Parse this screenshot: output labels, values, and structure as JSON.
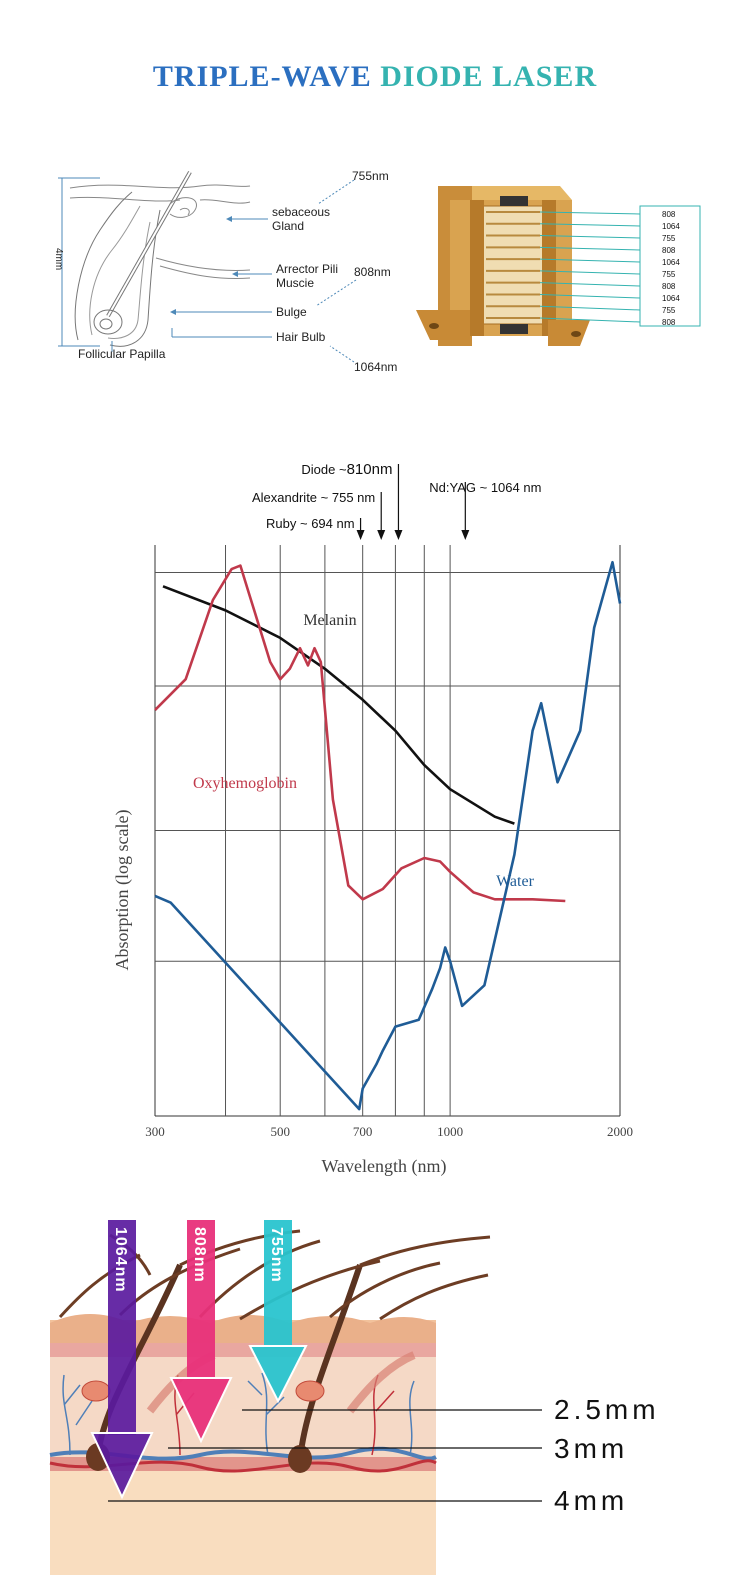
{
  "title": {
    "part1": "TRIPLE-WAVE",
    "part2": "DIODE LASER"
  },
  "anatomy": {
    "depth_label": "4mm",
    "labels": {
      "nm755": "755nm",
      "sebaceous": "sebaceous",
      "gland": "Gland",
      "nm808": "808nm",
      "arrector1": "Arrector Pili",
      "arrector2": "Muscie",
      "bulge": "Bulge",
      "hair_bulb": "Hair Bulb",
      "nm1064": "1064nm",
      "papilla": "Follicular Papilla"
    }
  },
  "module": {
    "bars": [
      "808",
      "1064",
      "755",
      "808",
      "1064",
      "755",
      "808",
      "1064",
      "755",
      "808"
    ]
  },
  "chart_data": {
    "type": "line",
    "xlabel": "Wavelength (nm)",
    "ylabel": "Absorption (log scale)",
    "x_scale": "log",
    "x_ticks": [
      300,
      500,
      700,
      1000,
      2000
    ],
    "x_tick_labels": [
      "300",
      "500",
      "700",
      "1000",
      "2000"
    ],
    "xlim": [
      300,
      2000
    ],
    "grid": true,
    "markers": [
      {
        "label": "Diode ~",
        "value_text": "810nm",
        "wavelength": 810
      },
      {
        "label": "Alexandrite ~ 755 nm",
        "wavelength": 755
      },
      {
        "label": "Ruby ~ 694 nm",
        "wavelength": 694
      },
      {
        "label": "Nd:YAG ~ 1064 nm",
        "wavelength": 1064
      }
    ],
    "series": [
      {
        "name": "Melanin",
        "color": "#111111",
        "points": [
          [
            310,
            0.92
          ],
          [
            400,
            0.85
          ],
          [
            500,
            0.77
          ],
          [
            600,
            0.68
          ],
          [
            700,
            0.59
          ],
          [
            800,
            0.5
          ],
          [
            900,
            0.4
          ],
          [
            1000,
            0.33
          ],
          [
            1200,
            0.25
          ],
          [
            1300,
            0.23
          ]
        ]
      },
      {
        "name": "Oxyhemoglobin",
        "color": "#c0394b",
        "points": [
          [
            300,
            0.56
          ],
          [
            340,
            0.65
          ],
          [
            380,
            0.88
          ],
          [
            410,
            0.97
          ],
          [
            425,
            0.98
          ],
          [
            440,
            0.9
          ],
          [
            480,
            0.7
          ],
          [
            500,
            0.65
          ],
          [
            520,
            0.68
          ],
          [
            542,
            0.74
          ],
          [
            560,
            0.69
          ],
          [
            575,
            0.74
          ],
          [
            590,
            0.7
          ],
          [
            620,
            0.3
          ],
          [
            660,
            0.05
          ],
          [
            700,
            0.01
          ],
          [
            760,
            0.04
          ],
          [
            820,
            0.1
          ],
          [
            900,
            0.13
          ],
          [
            960,
            0.12
          ],
          [
            1000,
            0.09
          ],
          [
            1100,
            0.03
          ],
          [
            1200,
            0.01
          ],
          [
            1400,
            0.01
          ],
          [
            1600,
            0.005
          ]
        ]
      },
      {
        "name": "Water",
        "color": "#1f5c96",
        "points": [
          [
            300,
            0.02
          ],
          [
            320,
            0.0
          ],
          [
            690,
            -0.6
          ],
          [
            700,
            -0.54
          ],
          [
            740,
            -0.47
          ],
          [
            760,
            -0.43
          ],
          [
            800,
            -0.36
          ],
          [
            880,
            -0.34
          ],
          [
            930,
            -0.25
          ],
          [
            960,
            -0.19
          ],
          [
            980,
            -0.13
          ],
          [
            1000,
            -0.17
          ],
          [
            1050,
            -0.3
          ],
          [
            1150,
            -0.24
          ],
          [
            1300,
            0.14
          ],
          [
            1400,
            0.5
          ],
          [
            1450,
            0.58
          ],
          [
            1550,
            0.35
          ],
          [
            1700,
            0.5
          ],
          [
            1800,
            0.8
          ],
          [
            1940,
            0.99
          ],
          [
            2000,
            0.87
          ]
        ]
      }
    ]
  },
  "depth": {
    "arrows": [
      {
        "label": "1064nm",
        "color": "#5a1a9e"
      },
      {
        "label": "808nm",
        "color": "#e8307a"
      },
      {
        "label": "755nm",
        "color": "#29c4cf"
      }
    ],
    "depth_labels": [
      "2.5mm",
      "3mm",
      "4mm"
    ]
  }
}
